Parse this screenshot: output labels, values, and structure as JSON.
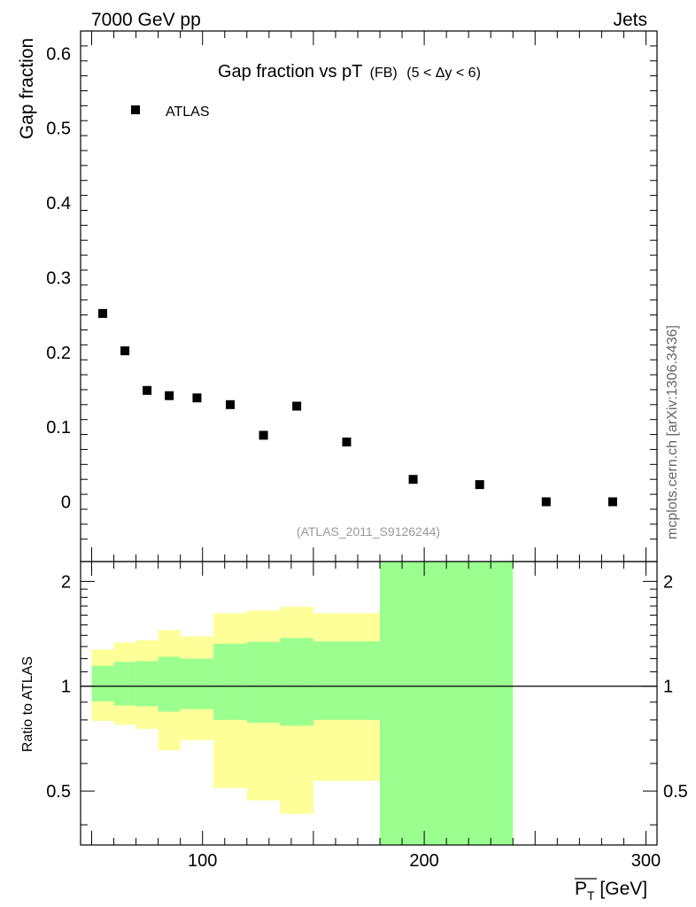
{
  "header": {
    "left": "7000 GeV pp",
    "right": "Jets"
  },
  "side_label": "mcplots.cern.ch [arXiv:1306.3436]",
  "chart_data": [
    {
      "type": "scatter",
      "title": "Gap fraction vs pT",
      "title_suffix": "(FB)",
      "title_cut": "(5 < Δy < 6)",
      "ylabel": "Gap fraction",
      "annotation": "(ATLAS_2011_S9126244)",
      "xlim": [
        45,
        305
      ],
      "ylim": [
        -0.08,
        0.63
      ],
      "y_ticks": [
        0,
        0.1,
        0.2,
        0.3,
        0.4,
        0.5,
        0.6
      ],
      "y_tick_labels": [
        "0",
        "0.1",
        "0.2",
        "0.3",
        "0.4",
        "0.5",
        "0.6"
      ],
      "legend_position": "top-left",
      "series": [
        {
          "name": "ATLAS",
          "x": [
            55,
            65,
            75,
            85,
            97.5,
            112.5,
            127.5,
            142.5,
            165,
            195,
            225,
            255,
            285
          ],
          "y": [
            0.252,
            0.202,
            0.149,
            0.142,
            0.139,
            0.13,
            0.089,
            0.128,
            0.08,
            0.03,
            0.023,
            0.0,
            0.0
          ]
        }
      ]
    },
    {
      "type": "area",
      "ylabel": "Ratio to ATLAS",
      "xlabel": "P_T [GeV]",
      "xlim": [
        45,
        305
      ],
      "ylim": [
        0.35,
        2.28
      ],
      "y_scale": "log",
      "x_ticks": [
        100,
        200,
        300
      ],
      "x_tick_labels": [
        "100",
        "200",
        "300"
      ],
      "y_ticks": [
        0.5,
        1,
        2
      ],
      "y_tick_labels": [
        "0.5",
        "1",
        "2"
      ],
      "reference_line": 1,
      "bands": [
        {
          "x0": 50,
          "x1": 60,
          "stat": [
            0.905,
            1.145
          ],
          "total": [
            0.795,
            1.275
          ]
        },
        {
          "x0": 60,
          "x1": 70,
          "stat": [
            0.88,
            1.175
          ],
          "total": [
            0.775,
            1.335
          ]
        },
        {
          "x0": 70,
          "x1": 80,
          "stat": [
            0.875,
            1.18
          ],
          "total": [
            0.755,
            1.355
          ]
        },
        {
          "x0": 80,
          "x1": 90,
          "stat": [
            0.845,
            1.215
          ],
          "total": [
            0.655,
            1.45
          ]
        },
        {
          "x0": 90,
          "x1": 105,
          "stat": [
            0.86,
            1.2
          ],
          "total": [
            0.7,
            1.39
          ]
        },
        {
          "x0": 105,
          "x1": 120,
          "stat": [
            0.8,
            1.325
          ],
          "total": [
            0.51,
            1.62
          ]
        },
        {
          "x0": 120,
          "x1": 135,
          "stat": [
            0.785,
            1.34
          ],
          "total": [
            0.47,
            1.65
          ]
        },
        {
          "x0": 135,
          "x1": 150,
          "stat": [
            0.77,
            1.375
          ],
          "total": [
            0.43,
            1.69
          ]
        },
        {
          "x0": 150,
          "x1": 180,
          "stat": [
            0.8,
            1.345
          ],
          "total": [
            0.535,
            1.62
          ]
        },
        {
          "x0": 180,
          "x1": 240,
          "stat": [
            0.35,
            2.28
          ],
          "total": [
            0.35,
            2.28
          ]
        }
      ],
      "colors": {
        "stat": "#9aff8f",
        "total": "#ffff99",
        "marker": "#000000"
      }
    }
  ]
}
